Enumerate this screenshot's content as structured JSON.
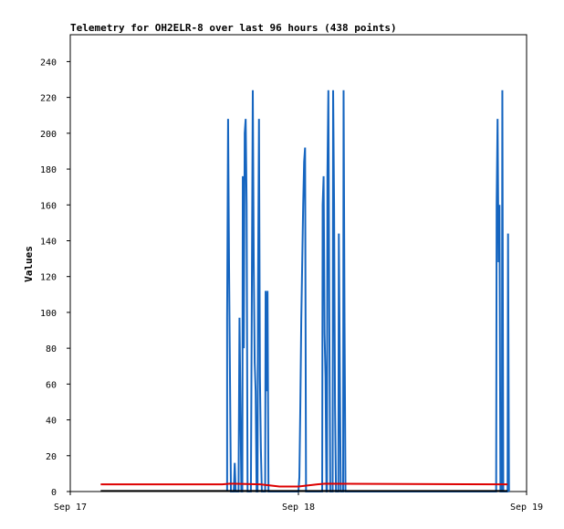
{
  "chart_data": {
    "type": "line",
    "title": "Telemetry for OH2ELR-8 over last 96 hours (438 points)",
    "xlabel": "",
    "ylabel": "Values",
    "ylim": [
      0,
      255
    ],
    "yticks": [
      "0",
      "20",
      "40",
      "60",
      "80",
      "100",
      "120",
      "140",
      "160",
      "180",
      "200",
      "220",
      "240"
    ],
    "xticks": [
      {
        "label": "Sep 17",
        "t": 0
      },
      {
        "label": "Sep 18",
        "t": 24
      },
      {
        "label": "Sep 19",
        "t": 48
      }
    ],
    "xlim_hours": [
      0,
      48
    ],
    "colors": {
      "blue": "#1565c0",
      "red": "#dd0000",
      "black": "#000000"
    },
    "series": [
      {
        "color": "blue",
        "values": [
          [
            16.5,
            0
          ],
          [
            16.5,
            97
          ],
          [
            16.6,
            208
          ],
          [
            16.7,
            128
          ],
          [
            16.8,
            64
          ],
          [
            16.9,
            0
          ],
          [
            17.2,
            0
          ],
          [
            17.3,
            16
          ],
          [
            17.4,
            0
          ],
          [
            17.7,
            0
          ],
          [
            17.8,
            97
          ],
          [
            17.9,
            48
          ],
          [
            18.0,
            0
          ],
          [
            18.1,
            0
          ],
          [
            18.15,
            176
          ],
          [
            18.25,
            80
          ],
          [
            18.35,
            200
          ],
          [
            18.45,
            208
          ],
          [
            18.55,
            160
          ],
          [
            18.65,
            0
          ],
          [
            19.0,
            0
          ],
          [
            19.1,
            112
          ],
          [
            19.2,
            224
          ],
          [
            19.3,
            128
          ],
          [
            19.4,
            72
          ],
          [
            19.5,
            56
          ],
          [
            19.6,
            0
          ],
          [
            19.7,
            0
          ],
          [
            19.75,
            112
          ],
          [
            19.85,
            208
          ],
          [
            19.95,
            64
          ],
          [
            20.05,
            24
          ],
          [
            20.15,
            0
          ],
          [
            20.5,
            0
          ],
          [
            20.55,
            112
          ],
          [
            20.65,
            56
          ],
          [
            20.75,
            112
          ],
          [
            20.85,
            0
          ],
          [
            24.0,
            0
          ],
          [
            24.1,
            8
          ],
          [
            24.2,
            48
          ],
          [
            24.3,
            96
          ],
          [
            24.4,
            128
          ],
          [
            24.5,
            160
          ],
          [
            24.6,
            184
          ],
          [
            24.7,
            192
          ],
          [
            24.8,
            0
          ],
          [
            26.5,
            0
          ],
          [
            26.55,
            160
          ],
          [
            26.65,
            176
          ],
          [
            26.75,
            88
          ],
          [
            26.85,
            64
          ],
          [
            26.95,
            0
          ],
          [
            27.0,
            0
          ],
          [
            27.05,
            176
          ],
          [
            27.15,
            224
          ],
          [
            27.25,
            96
          ],
          [
            27.35,
            0
          ],
          [
            27.6,
            0
          ],
          [
            27.65,
            224
          ],
          [
            27.75,
            160
          ],
          [
            27.85,
            48
          ],
          [
            27.95,
            0
          ],
          [
            28.2,
            0
          ],
          [
            28.25,
            144
          ],
          [
            28.35,
            72
          ],
          [
            28.45,
            0
          ],
          [
            28.7,
            0
          ],
          [
            28.75,
            224
          ],
          [
            28.85,
            96
          ],
          [
            28.95,
            0
          ],
          [
            44.8,
            0
          ],
          [
            44.85,
            160
          ],
          [
            44.95,
            208
          ],
          [
            45.05,
            128
          ],
          [
            45.15,
            160
          ],
          [
            45.25,
            0
          ],
          [
            45.4,
            0
          ],
          [
            45.45,
            224
          ],
          [
            45.55,
            0
          ],
          [
            46.0,
            0
          ],
          [
            46.05,
            144
          ],
          [
            46.15,
            0
          ]
        ]
      },
      {
        "color": "red",
        "values": [
          [
            3.2,
            4
          ],
          [
            16.0,
            4
          ],
          [
            16.8,
            4.4
          ],
          [
            20.0,
            4
          ],
          [
            22.0,
            2.8
          ],
          [
            24.0,
            2.8
          ],
          [
            26.0,
            4
          ],
          [
            26.8,
            4.4
          ],
          [
            46.0,
            4
          ]
        ]
      },
      {
        "color": "black",
        "values": [
          [
            3.2,
            0.3
          ],
          [
            46.0,
            0.3
          ]
        ]
      }
    ]
  }
}
